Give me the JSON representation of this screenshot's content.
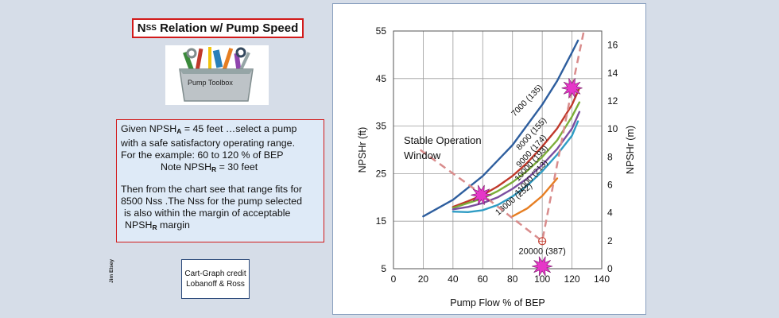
{
  "title": {
    "prefix": "N",
    "subscript": "SS",
    "rest": " Relation w/ Pump Speed"
  },
  "toolbox": {
    "label": "Pump Toolbox"
  },
  "given": {
    "l1_pre": "Given NPSH",
    "l1_sub": "A",
    "l1_post": " = 45 feet …select a pump",
    "l2": "with a safe satisfactory operating range.",
    "l3": "For the example:  60 to 120 % of BEP",
    "l4_pre": "Note NPSH",
    "l4_sub": "R",
    "l4_post": " = 30 feet",
    "l5": "Then from the chart see that range fits for",
    "l6": "8500 Nss .The Nss for the pump selected",
    "l7": "is also within the margin of acceptable",
    "l8_pre": "NPSH",
    "l8_sub": "R",
    "l8_post": " margin"
  },
  "credit": {
    "line1": "Cart-Graph credit",
    "line2": "Lobanoff & Ross"
  },
  "author": "Jim Elsey",
  "chart_data": {
    "type": "line",
    "xlabel": "Pump Flow % of BEP",
    "ylabel": "NPSHr (ft)",
    "y2label": "NPSHr (m)",
    "xlim": [
      0,
      140
    ],
    "ylim": [
      5,
      55
    ],
    "y2lim": [
      0,
      17
    ],
    "xticks": [
      0,
      20,
      40,
      60,
      80,
      100,
      120,
      140
    ],
    "yticks": [
      5,
      15,
      25,
      35,
      45,
      55
    ],
    "y2ticks": [
      0,
      2,
      4,
      6,
      8,
      10,
      12,
      14,
      16
    ],
    "grid": true,
    "series": [
      {
        "name": "7000 (135)",
        "color": "#2e5e9e",
        "x": [
          20,
          40,
          60,
          80,
          100,
          110,
          120,
          124
        ],
        "y": [
          16,
          19.5,
          24.5,
          31,
          39.5,
          44.5,
          50.5,
          53
        ]
      },
      {
        "name": "8000 (155)",
        "color": "#c0392b",
        "x": [
          40,
          50,
          60,
          70,
          80,
          90,
          100,
          110,
          120,
          125
        ],
        "y": [
          18,
          19.2,
          20.5,
          22.3,
          24.5,
          27.3,
          30.7,
          34.5,
          39.5,
          43
        ]
      },
      {
        "name": "9000 (174)",
        "color": "#7cae3a",
        "x": [
          40,
          50,
          60,
          70,
          80,
          90,
          100,
          110,
          120,
          125
        ],
        "y": [
          17.8,
          18.8,
          19.8,
          21.3,
          23.2,
          25.6,
          28.5,
          32,
          37,
          40
        ]
      },
      {
        "name": "10000 (193)",
        "color": "#7b4ea0",
        "x": [
          40,
          50,
          60,
          70,
          80,
          90,
          100,
          110,
          120,
          125
        ],
        "y": [
          17.5,
          18,
          18.8,
          20,
          21.8,
          24,
          26.8,
          30.2,
          34.5,
          38
        ]
      },
      {
        "name": "11000 (213)",
        "color": "#2f9cc4",
        "x": [
          40,
          50,
          60,
          70,
          80,
          90,
          100,
          110,
          120,
          124
        ],
        "y": [
          17,
          16.9,
          17.3,
          18.4,
          20.2,
          22.5,
          25.5,
          29,
          33,
          36
        ]
      },
      {
        "name": "13000 (252)",
        "color": "#e67e22",
        "x": [
          80,
          90,
          100,
          110
        ],
        "y": [
          16,
          17.7,
          20.3,
          24
        ]
      }
    ],
    "annotations": {
      "stable_window": "Stable Operation\nWindow",
      "point_label": "20000 (387)"
    },
    "markers": [
      {
        "x": 59,
        "y": 20.5
      },
      {
        "x": 120,
        "y": 43
      },
      {
        "x": 100,
        "y": 5.5
      }
    ],
    "dashed_lines": [
      {
        "x": [
          18,
          60,
          100,
          120,
          128
        ],
        "y": [
          30,
          20.5,
          10.8,
          43,
          55
        ]
      }
    ],
    "reference_point": {
      "x": 100,
      "y": 10.8
    }
  }
}
